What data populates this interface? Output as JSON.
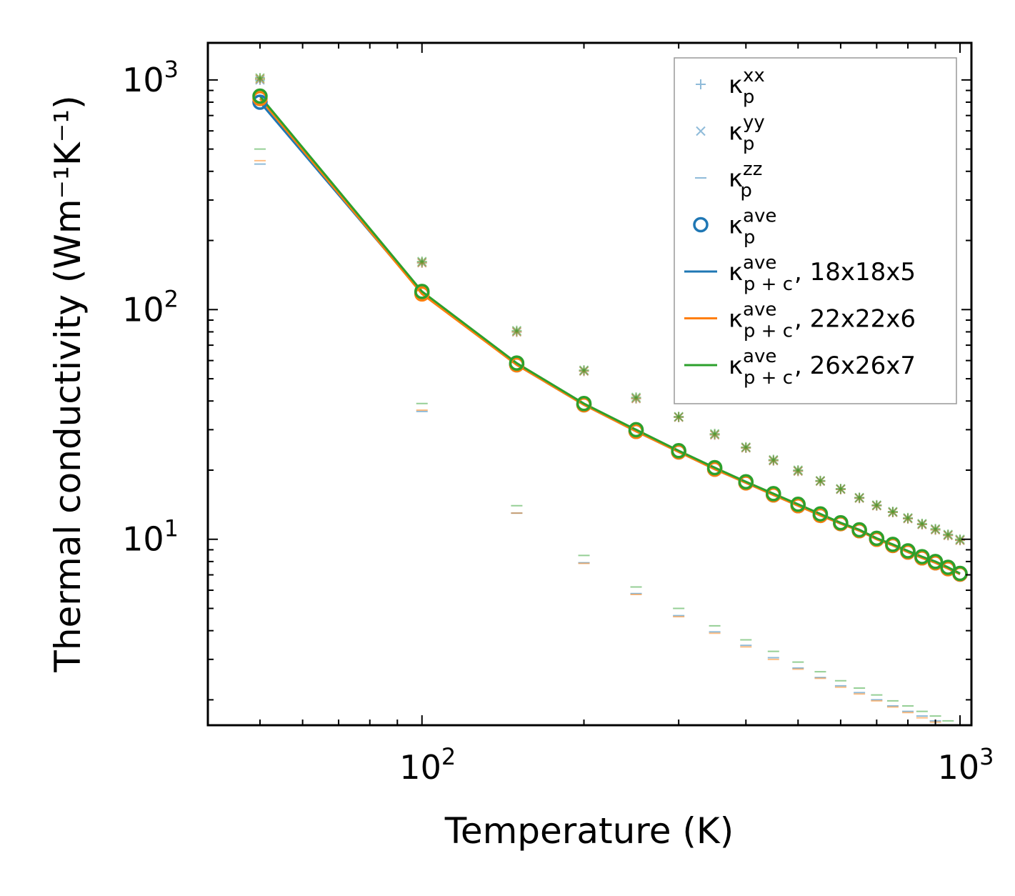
{
  "chart_data": {
    "type": "line",
    "x_scale": "log",
    "y_scale": "log",
    "xlabel": "Temperature (K)",
    "ylabel": "Thermal conductivity (Wm⁻¹K⁻¹)",
    "xlim": [
      40,
      1050
    ],
    "ylim": [
      1.55,
      1450
    ],
    "x_ticks": [
      {
        "base": "10",
        "exp": "2"
      },
      {
        "base": "10",
        "exp": "3"
      }
    ],
    "y_ticks": [
      {
        "base": "10",
        "exp": "1"
      },
      {
        "base": "10",
        "exp": "2"
      },
      {
        "base": "10",
        "exp": "3"
      }
    ],
    "x": [
      50,
      100,
      150,
      200,
      250,
      300,
      350,
      400,
      450,
      500,
      550,
      600,
      650,
      700,
      750,
      800,
      850,
      900,
      950,
      1000
    ],
    "colors": {
      "grid_18": "#1f77b4",
      "grid_22": "#ff7f0e",
      "grid_26": "#2ca02c"
    },
    "series": [
      {
        "name": "18x18x5",
        "color": "#1f77b4",
        "kxx": [
          1000,
          160,
          80,
          54,
          41,
          34,
          28.5,
          25,
          22,
          19.8,
          17.9,
          16.5,
          15.1,
          14.0,
          13.1,
          12.3,
          11.6,
          11.0,
          10.4,
          9.9
        ],
        "kyy": [
          1000,
          160,
          80,
          54,
          41,
          34,
          28.5,
          25,
          22,
          19.8,
          17.9,
          16.5,
          15.1,
          14.0,
          13.1,
          12.3,
          11.6,
          11.0,
          10.4,
          9.9
        ],
        "kzz": [
          430,
          36,
          13,
          7.9,
          5.8,
          4.65,
          3.95,
          3.45,
          3.05,
          2.75,
          2.5,
          2.3,
          2.15,
          2.0,
          1.88,
          1.78,
          1.7,
          1.62,
          1.55,
          1.48
        ],
        "kave": [
          800,
          118,
          57.5,
          38.5,
          29.5,
          24,
          20.2,
          17.6,
          15.6,
          14.0,
          12.7,
          11.7,
          10.9,
          10.0,
          9.4,
          8.8,
          8.3,
          7.9,
          7.45,
          7.05
        ]
      },
      {
        "name": "22x22x6",
        "color": "#ff7f0e",
        "kxx": [
          1010,
          160,
          80,
          54,
          41,
          34,
          28.5,
          25,
          22,
          19.8,
          17.9,
          16.5,
          15.1,
          14.0,
          13.1,
          12.3,
          11.6,
          11.0,
          10.4,
          9.9
        ],
        "kyy": [
          1010,
          160,
          80,
          54,
          41,
          34,
          28.5,
          25,
          22,
          19.8,
          17.9,
          16.5,
          15.1,
          14.0,
          13.1,
          12.3,
          11.6,
          11.0,
          10.4,
          9.9
        ],
        "kzz": [
          445,
          36.5,
          13,
          7.85,
          5.75,
          4.6,
          3.9,
          3.4,
          3.0,
          2.72,
          2.48,
          2.27,
          2.12,
          1.98,
          1.86,
          1.76,
          1.67,
          1.6,
          1.53,
          1.46
        ],
        "kave": [
          830,
          117,
          57.5,
          38.5,
          29.5,
          24,
          20.2,
          17.6,
          15.6,
          14.0,
          12.7,
          11.7,
          10.9,
          10.0,
          9.4,
          8.8,
          8.3,
          7.9,
          7.45,
          7.05
        ]
      },
      {
        "name": "26x26x7",
        "color": "#2ca02c",
        "kxx": [
          1020,
          162,
          81,
          54.5,
          41.5,
          34.2,
          28.8,
          25.2,
          22.2,
          20.0,
          18.0,
          16.6,
          15.2,
          14.1,
          13.2,
          12.4,
          11.7,
          11.1,
          10.5,
          10.0
        ],
        "kyy": [
          1020,
          162,
          81,
          54.5,
          41.5,
          34.2,
          28.8,
          25.2,
          22.2,
          20.0,
          18.0,
          16.6,
          15.2,
          14.1,
          13.2,
          12.4,
          11.7,
          11.1,
          10.5,
          10.0
        ],
        "kzz": [
          500,
          39,
          14,
          8.5,
          6.2,
          5.0,
          4.2,
          3.65,
          3.25,
          2.92,
          2.65,
          2.42,
          2.25,
          2.1,
          1.98,
          1.88,
          1.78,
          1.7,
          1.62,
          1.55
        ],
        "kave": [
          850,
          120,
          58.5,
          39,
          30,
          24.3,
          20.5,
          17.8,
          15.8,
          14.2,
          12.9,
          11.8,
          11.0,
          10.1,
          9.5,
          8.9,
          8.4,
          8.0,
          7.55,
          7.1
        ]
      }
    ],
    "legend": {
      "placement": "top-right",
      "entries": [
        {
          "kind": "plus",
          "sym": "κ",
          "sup": "xx",
          "sub": "p",
          "suffix": ""
        },
        {
          "kind": "cross",
          "sym": "κ",
          "sup": "yy",
          "sub": "p",
          "suffix": ""
        },
        {
          "kind": "dash",
          "sym": "κ",
          "sup": "zz",
          "sub": "p",
          "suffix": ""
        },
        {
          "kind": "circle",
          "sym": "κ",
          "sup": "ave",
          "sub": "p",
          "suffix": ""
        },
        {
          "kind": "line",
          "color": "#1f77b4",
          "sym": "κ",
          "sup": "ave",
          "sub": "p + c",
          "suffix": ", 18x18x5"
        },
        {
          "kind": "line",
          "color": "#ff7f0e",
          "sym": "κ",
          "sup": "ave",
          "sub": "p + c",
          "suffix": ", 22x22x6"
        },
        {
          "kind": "line",
          "color": "#2ca02c",
          "sym": "κ",
          "sup": "ave",
          "sub": "p + c",
          "suffix": ", 26x26x7"
        }
      ]
    }
  }
}
